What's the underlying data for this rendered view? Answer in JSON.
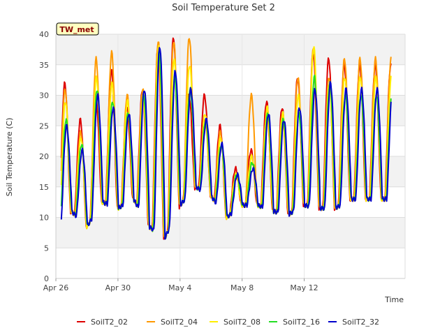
{
  "chart_data": {
    "type": "line",
    "title": "Soil Temperature Set 2",
    "xlabel": "Time",
    "ylabel": "Soil Temperature (C)",
    "badge": "TW_met",
    "ylim": [
      0,
      40
    ],
    "yticks": [
      0,
      5,
      10,
      15,
      20,
      25,
      30,
      35,
      40
    ],
    "xlim": [
      0,
      22.5
    ],
    "xticks": [
      {
        "x": 0,
        "label": "Apr 26"
      },
      {
        "x": 4,
        "label": "Apr 30"
      },
      {
        "x": 8,
        "label": "May 4"
      },
      {
        "x": 12,
        "label": "May 8"
      },
      {
        "x": 16,
        "label": "May 12"
      }
    ],
    "x_unit": "days since Apr 26",
    "grid": true,
    "legend_position": "bottom",
    "series": [
      {
        "name": "SoilT2_02",
        "color": "#dd0000",
        "amp": 1.0,
        "phase": 0.0,
        "peaks": [
          32,
          26,
          30,
          34,
          28,
          31,
          38,
          39.5,
          30,
          30,
          25,
          18,
          21,
          29,
          28,
          33,
          37,
          36,
          35
        ]
      },
      {
        "name": "SoilT2_04",
        "color": "#ff9900",
        "amp": 1.0,
        "phase": 0.02,
        "peaks": [
          31,
          24,
          36,
          37,
          30,
          31,
          39,
          39,
          39.5,
          26,
          24,
          17,
          30,
          27,
          27,
          33,
          38,
          33,
          36
        ]
      },
      {
        "name": "SoilT2_08",
        "color": "#ffee00",
        "amp": 0.92,
        "phase": 0.04,
        "peaks": [
          29,
          23,
          33,
          32,
          29,
          30,
          38,
          36,
          35,
          27,
          23,
          17,
          20,
          28,
          27,
          30,
          38,
          32,
          33
        ]
      },
      {
        "name": "SoilT2_16",
        "color": "#22dd22",
        "amp": 0.82,
        "phase": 0.08,
        "peaks": [
          26,
          22,
          31,
          29,
          27,
          30,
          37,
          33,
          31,
          26,
          22,
          17,
          19,
          27,
          26,
          27,
          33,
          32,
          30
        ]
      },
      {
        "name": "SoilT2_32",
        "color": "#0000cc",
        "amp": 0.78,
        "phase": 0.12,
        "peaks": [
          25,
          21,
          30,
          28,
          27,
          31,
          38,
          34,
          31,
          26,
          22,
          17,
          18,
          27,
          26,
          28,
          31,
          32,
          31
        ]
      }
    ],
    "troughs": [
      7,
      11,
      8.5,
      12.5,
      11.5,
      13,
      8.5,
      6.5,
      12,
      15,
      13.5,
      10,
      12,
      12,
      11,
      10.5,
      12,
      11.5,
      11.5,
      13
    ]
  }
}
